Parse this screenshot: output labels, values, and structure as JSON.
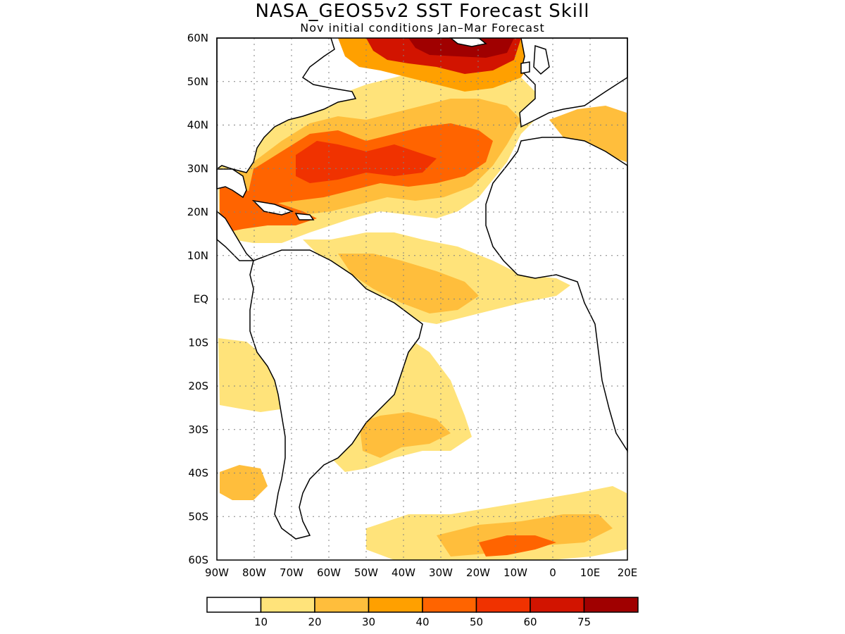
{
  "title": "NASA_GEOS5v2 SST Forecast Skill",
  "subtitle": "Nov initial conditions   Jan–Mar Forecast",
  "map": {
    "region": "Atlantic Ocean",
    "lon_range": [
      -90,
      20
    ],
    "lat_range": [
      -60,
      60
    ],
    "lat_labels": [
      "60N",
      "50N",
      "40N",
      "30N",
      "20N",
      "10N",
      "EQ",
      "10S",
      "20S",
      "30S",
      "40S",
      "50S",
      "60S"
    ],
    "lon_labels": [
      "90W",
      "80W",
      "70W",
      "60W",
      "50W",
      "40W",
      "30W",
      "20W",
      "10W",
      "0",
      "10E",
      "20E"
    ],
    "land_color": "#ffffff",
    "coastline_color": "#000000",
    "grid": "dotted"
  },
  "colorbar": {
    "labels": [
      "10",
      "20",
      "30",
      "40",
      "50",
      "60",
      "75"
    ],
    "colors": [
      "#ffffff",
      "#ffe37a",
      "#ffbe3c",
      "#ffa000",
      "#ff6400",
      "#f03200",
      "#d21400",
      "#a00000"
    ]
  }
}
